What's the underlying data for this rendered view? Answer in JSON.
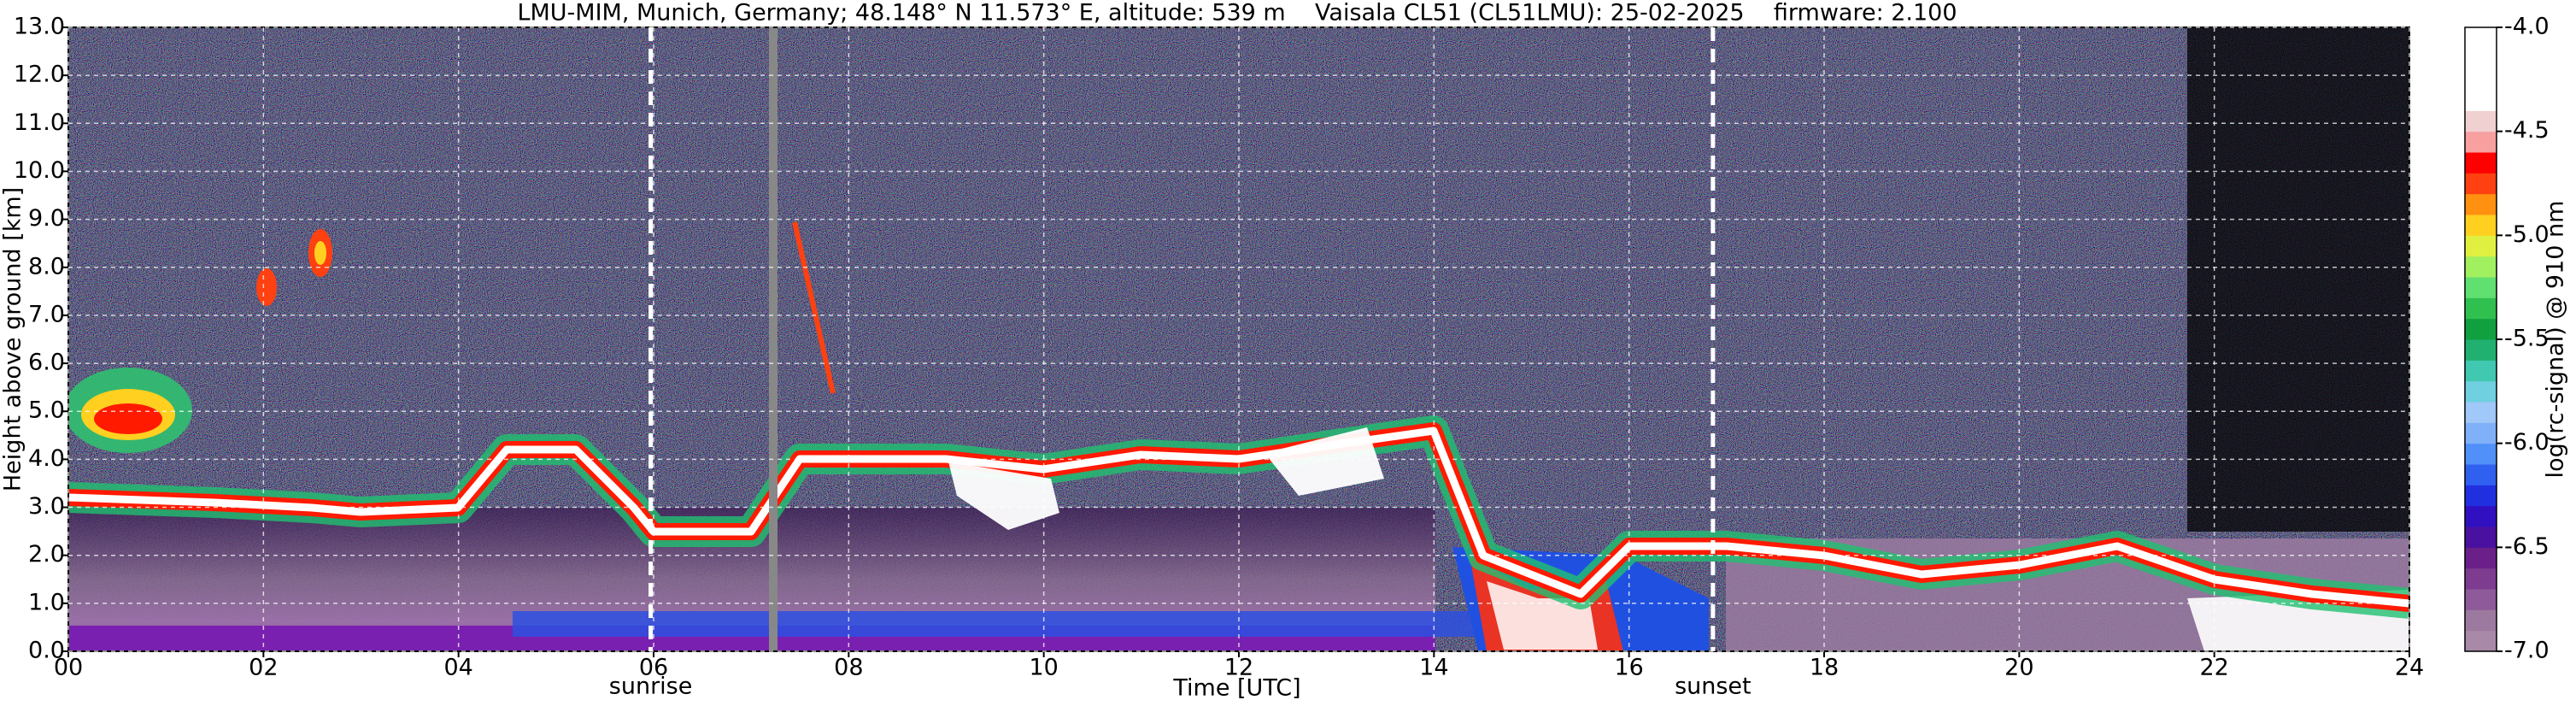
{
  "chart_data": {
    "type": "heatmap",
    "title": "LMU-MIM, Munich, Germany; 48.148° N 11.573° E, altitude: 539 m    Vaisala CL51 (CL51LMU): 25-02-2025    firmware: 2.100",
    "xlabel": "Time [UTC]",
    "ylabel": "Height above ground [km]",
    "xlim": [
      0,
      24
    ],
    "xticks": [
      {
        "value": 0,
        "label": "00"
      },
      {
        "value": 2,
        "label": "02"
      },
      {
        "value": 4,
        "label": "04"
      },
      {
        "value": 6,
        "label": "06"
      },
      {
        "value": 8,
        "label": "08"
      },
      10,
      12,
      14,
      16,
      18,
      20,
      22,
      24
    ],
    "ylim": [
      0,
      13
    ],
    "yticks": [
      {
        "value": 0,
        "label": "0.0"
      },
      {
        "value": 1,
        "label": "1.0"
      },
      {
        "value": 2,
        "label": "2.0"
      },
      {
        "value": 3,
        "label": "3.0"
      },
      {
        "value": 4,
        "label": "4.0"
      },
      {
        "value": 5,
        "label": "5.0"
      },
      {
        "value": 6,
        "label": "6.0"
      },
      {
        "value": 7,
        "label": "7.0"
      },
      {
        "value": 8,
        "label": "8.0"
      },
      {
        "value": 9,
        "label": "9.0"
      },
      {
        "value": 10,
        "label": "10.0"
      },
      {
        "value": 11,
        "label": "11.0"
      },
      {
        "value": 12,
        "label": "12.0"
      },
      {
        "value": 13,
        "label": "13.0"
      }
    ],
    "grid": true,
    "annotations": [
      {
        "text": "sunrise",
        "x": 5.97
      },
      {
        "text": "sunset",
        "x": 16.86
      }
    ],
    "colorbar": {
      "label": "log(rc-signal) @ 910 nm",
      "zlim": [
        -7,
        -4
      ],
      "ticks": [
        {
          "value": -7,
          "label": "-7.0"
        },
        -6.5,
        {
          "value": -6,
          "label": "-6.0"
        },
        -5.5,
        {
          "value": -5,
          "label": "-5.0"
        },
        -4.5,
        {
          "value": -4,
          "label": "-4.0"
        }
      ],
      "colors": [
        "#a88aa8",
        "#9c7aa0",
        "#8e5a9a",
        "#7e3c90",
        "#6a2088",
        "#4a10a0",
        "#3010c0",
        "#2030e0",
        "#3060f0",
        "#5090f8",
        "#80b0f8",
        "#a0c8f8",
        "#70d0e0",
        "#40c8b0",
        "#20b070",
        "#10a040",
        "#30c050",
        "#60e070",
        "#a0f060",
        "#e0f040",
        "#ffd020",
        "#ff9010",
        "#ff4010",
        "#ff0000",
        "#f8a0a0",
        "#f0d0d0",
        "#ffffff",
        "#ffffff",
        "#ffffff",
        "#ffffff"
      ]
    }
  }
}
